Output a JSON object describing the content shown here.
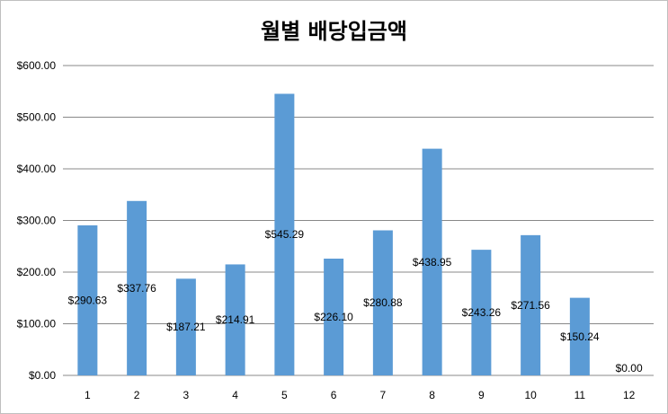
{
  "chart_data": {
    "type": "bar",
    "title": "월별 배당입금액",
    "xlabel": "",
    "ylabel": "",
    "categories": [
      "1",
      "2",
      "3",
      "4",
      "5",
      "6",
      "7",
      "8",
      "9",
      "10",
      "11",
      "12"
    ],
    "values": [
      290.63,
      337.76,
      187.21,
      214.91,
      545.29,
      226.1,
      280.88,
      438.95,
      243.26,
      271.56,
      150.24,
      0.0
    ],
    "data_labels": [
      "$290.63",
      "$337.76",
      "$187.21",
      "$214.91",
      "$545.29",
      "$226.10",
      "$280.88",
      "$438.95",
      "$243.26",
      "$271.56",
      "$150.24",
      "$0.00"
    ],
    "y_ticks": [
      0,
      100,
      200,
      300,
      400,
      500,
      600
    ],
    "y_tick_labels": [
      "$0.00",
      "$100.00",
      "$200.00",
      "$300.00",
      "$400.00",
      "$500.00",
      "$600.00"
    ],
    "ylim": [
      0,
      600
    ],
    "grid": true,
    "legend": "none",
    "bar_color": "#5b9bd5",
    "gridline_color": "#888888"
  }
}
